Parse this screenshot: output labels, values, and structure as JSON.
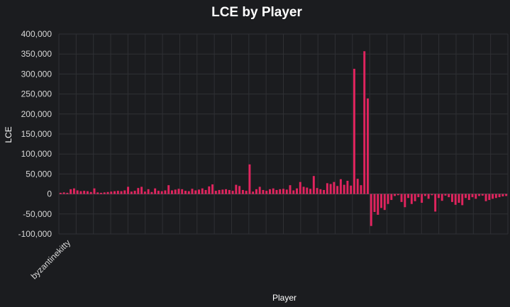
{
  "chart_data": {
    "type": "bar",
    "title": "LCE by Player",
    "xlabel": "Player",
    "ylabel": "LCE",
    "ylim": [
      -100000,
      400000
    ],
    "yticks": [
      "400,000",
      "350,000",
      "300,000",
      "250,000",
      "200,000",
      "150,000",
      "100,000",
      "50,000",
      "0",
      "-50,000",
      "-100,000"
    ],
    "ytick_values": [
      400000,
      350000,
      300000,
      250000,
      200000,
      150000,
      100000,
      50000,
      0,
      -50000,
      -100000
    ],
    "visible_category_label": "byzantinekitty",
    "bar_color": "#e0245e",
    "grid": true,
    "values": [
      3000,
      4000,
      3000,
      12000,
      14000,
      9000,
      7000,
      8000,
      7000,
      5000,
      14000,
      4000,
      3000,
      4000,
      5000,
      6000,
      7000,
      8000,
      7000,
      9000,
      18000,
      6000,
      8000,
      15000,
      18000,
      6000,
      12000,
      5000,
      14000,
      8000,
      7000,
      9000,
      22000,
      9000,
      11000,
      13000,
      12000,
      8000,
      7000,
      13000,
      9000,
      11000,
      14000,
      10000,
      19000,
      24000,
      8000,
      10000,
      11000,
      12000,
      10000,
      8000,
      23000,
      20000,
      10000,
      8000,
      74000,
      6000,
      12000,
      18000,
      10000,
      8000,
      12000,
      14000,
      10000,
      12000,
      13000,
      11000,
      22000,
      9000,
      14000,
      30000,
      18000,
      16000,
      13000,
      45000,
      15000,
      12000,
      10000,
      27000,
      25000,
      30000,
      20000,
      37000,
      23000,
      33000,
      21000,
      313000,
      38000,
      22000,
      357000,
      239000,
      -80000,
      -45000,
      -52000,
      -35000,
      -40000,
      -25000,
      -15000,
      -5000,
      -3000,
      -20000,
      -33000,
      -10000,
      -25000,
      -18000,
      -8000,
      -22000,
      -5000,
      -12000,
      -3000,
      -44000,
      -10000,
      -17000,
      -4000,
      -8000,
      -20000,
      -27000,
      -22000,
      -28000,
      -10000,
      -15000,
      -8000,
      -12000,
      -5000,
      -4000,
      -18000,
      -15000,
      -12000,
      -10000,
      -8000,
      -6000,
      -5000
    ]
  }
}
